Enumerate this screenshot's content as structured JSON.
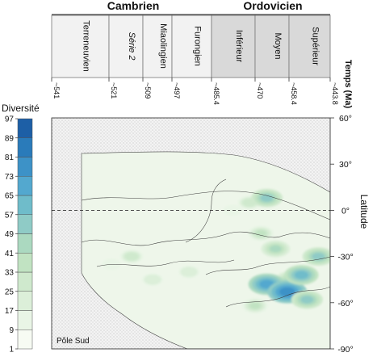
{
  "chart_data": {
    "type": "heatmap",
    "periods": [
      {
        "name": "Cambrien",
        "stages": [
          "Terreneuvien",
          "Série 2",
          "Miaolingien",
          "Furongien"
        ]
      },
      {
        "name": "Ordovicien",
        "stages": [
          "Inférieur",
          "Moyen",
          "Supérieur"
        ]
      }
    ],
    "stage_bounds_ma": [
      541,
      521,
      509,
      497,
      485.4,
      470,
      458.4,
      443.8
    ],
    "time_tick_labels": [
      "~541",
      "~521",
      "~509",
      "~497",
      "~485.4",
      "~470",
      "~458.4",
      "~443.8"
    ],
    "xlabel": "Temps (Ma)",
    "ylabel": "Latitude",
    "y_ticks": [
      60,
      30,
      0,
      -30,
      -60,
      -90
    ],
    "y_tick_labels": [
      "60°",
      "30°",
      "0°",
      "-30°",
      "-60°",
      "-90°"
    ],
    "ylim": [
      -90,
      60
    ],
    "xlim": [
      541,
      443.8
    ],
    "equator_line": 0,
    "colorbar": {
      "title": "Diversité",
      "levels": [
        1,
        9,
        17,
        25,
        33,
        41,
        49,
        57,
        65,
        73,
        81,
        89,
        97
      ],
      "colors": [
        "#f7fbf3",
        "#e9f5e6",
        "#dcefd9",
        "#cfe9cd",
        "#c1e3c2",
        "#abd9c0",
        "#8fcbc6",
        "#6fbcca",
        "#53a8cf",
        "#3d92c7",
        "#2a7bba",
        "#1d5fa6"
      ]
    },
    "annotation": "Pôle Sud",
    "diversity_blobs": [
      {
        "age": 530,
        "lat": -10,
        "level": 0
      },
      {
        "age": 520,
        "lat": -35,
        "level": 1
      },
      {
        "age": 513,
        "lat": -30,
        "level": 3
      },
      {
        "age": 505,
        "lat": -45,
        "level": 2
      },
      {
        "age": 492,
        "lat": -40,
        "level": 2
      },
      {
        "age": 478,
        "lat": 0,
        "level": 1
      },
      {
        "age": 472,
        "lat": 5,
        "level": 3
      },
      {
        "age": 468,
        "lat": -15,
        "level": 4
      },
      {
        "age": 466,
        "lat": 8,
        "level": 6
      },
      {
        "age": 463,
        "lat": -25,
        "level": 5
      },
      {
        "age": 458,
        "lat": -45,
        "level": 5
      },
      {
        "age": 466,
        "lat": -48,
        "level": 8
      },
      {
        "age": 459,
        "lat": -53,
        "level": 9
      },
      {
        "age": 454,
        "lat": -42,
        "level": 7
      },
      {
        "age": 448,
        "lat": -30,
        "level": 6
      },
      {
        "age": 452,
        "lat": -58,
        "level": 6
      },
      {
        "age": 470,
        "lat": -62,
        "level": 4
      }
    ]
  }
}
